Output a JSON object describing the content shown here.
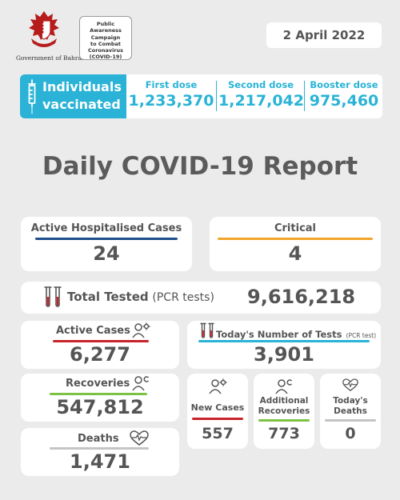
{
  "header": {
    "government_label": "Government of Bahrain",
    "campaign_lines": [
      "Public Awareness",
      "Campaign",
      "to Combat",
      "Coronavirus",
      "(COVID-19)"
    ],
    "date": "2 April 2022"
  },
  "vaccination": {
    "title_line1": "Individuals",
    "title_line2": "vaccinated",
    "first_dose_label": "First dose",
    "first_dose_value": "1,233,370",
    "second_dose_label": "Second dose",
    "second_dose_value": "1,217,042",
    "booster_dose_label": "Booster dose",
    "booster_dose_value": "975,460"
  },
  "report_title": "Daily COVID-19 Report",
  "hospitalised": {
    "label": "Active Hospitalised Cases",
    "value": "24"
  },
  "critical": {
    "label": "Critical",
    "value": "4"
  },
  "total_tested": {
    "label": "Total Tested",
    "suffix": "(PCR tests)",
    "value": "9,616,218"
  },
  "active_cases": {
    "label": "Active Cases",
    "value": "6,277"
  },
  "todays_tests": {
    "label": "Today's Number of Tests",
    "suffix": "(PCR test)",
    "value": "3,901"
  },
  "recoveries": {
    "label": "Recoveries",
    "value": "547,812"
  },
  "deaths": {
    "label": "Deaths",
    "value": "1,471"
  },
  "new_cases": {
    "label": "New Cases",
    "value": "557"
  },
  "additional_recoveries": {
    "label_line1": "Additional",
    "label_line2": "Recoveries",
    "value": "773"
  },
  "todays_deaths": {
    "label_line1": "Today's",
    "label_line2": "Deaths",
    "value": "0"
  },
  "colors": {
    "accent_blue": "#2ab3d6",
    "navy": "#1f4e8c",
    "orange": "#f0a52a",
    "red": "#c8232b",
    "green": "#7cc242",
    "text": "#555555",
    "background": "#ebebeb"
  },
  "icons": [
    "bahrain-emblem",
    "syringe-icon",
    "test-tubes-icon",
    "virus-person-icon",
    "recovery-person-icon",
    "heartbeat-icon"
  ]
}
